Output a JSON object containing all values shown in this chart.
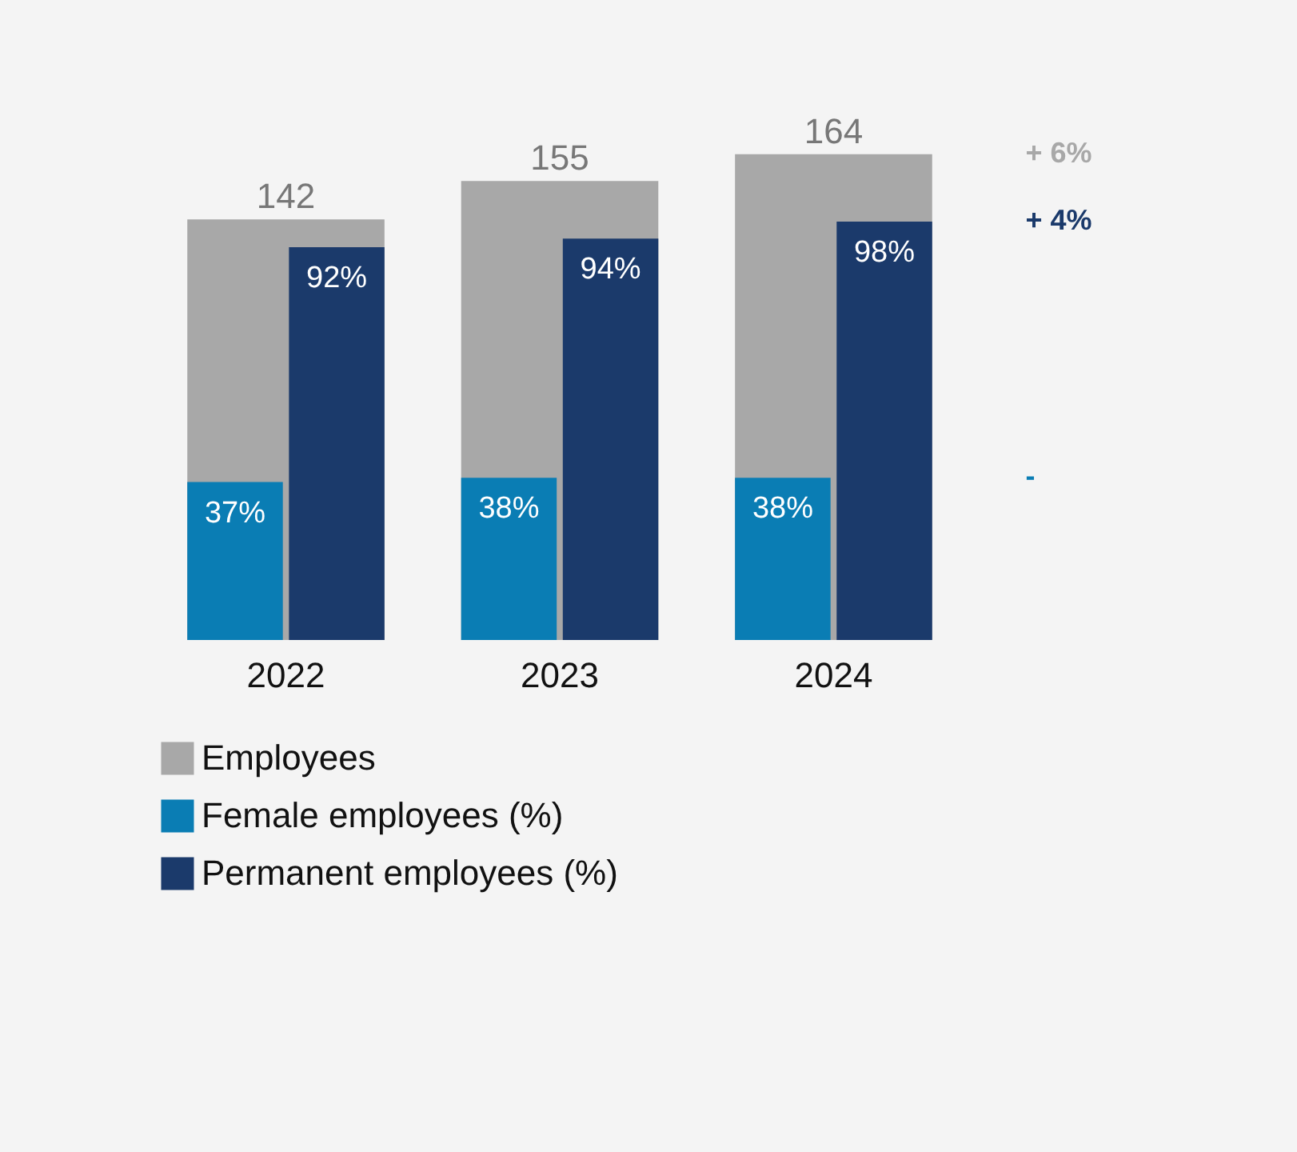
{
  "chart_data": {
    "type": "bar",
    "categories": [
      "2022",
      "2023",
      "2024"
    ],
    "series": [
      {
        "name": "Employees",
        "color": "#a8a8a8",
        "values": [
          142,
          155,
          164
        ],
        "value_labels": [
          "142",
          "155",
          "164"
        ]
      },
      {
        "name": "Female employees (%)",
        "color": "#0a7db4",
        "values": [
          37,
          38,
          38
        ],
        "axis": "y2",
        "value_labels": [
          "37%",
          "38%",
          "38%"
        ]
      },
      {
        "name": "Permanent employees (%)",
        "color": "#1b3a6b",
        "values": [
          92,
          94,
          98
        ],
        "axis": "y2",
        "value_labels": [
          "92%",
          "94%",
          "98%"
        ]
      }
    ],
    "legend": "bottom left",
    "annotations": [
      "+ 6%",
      "-",
      "+ 4%"
    ]
  }
}
